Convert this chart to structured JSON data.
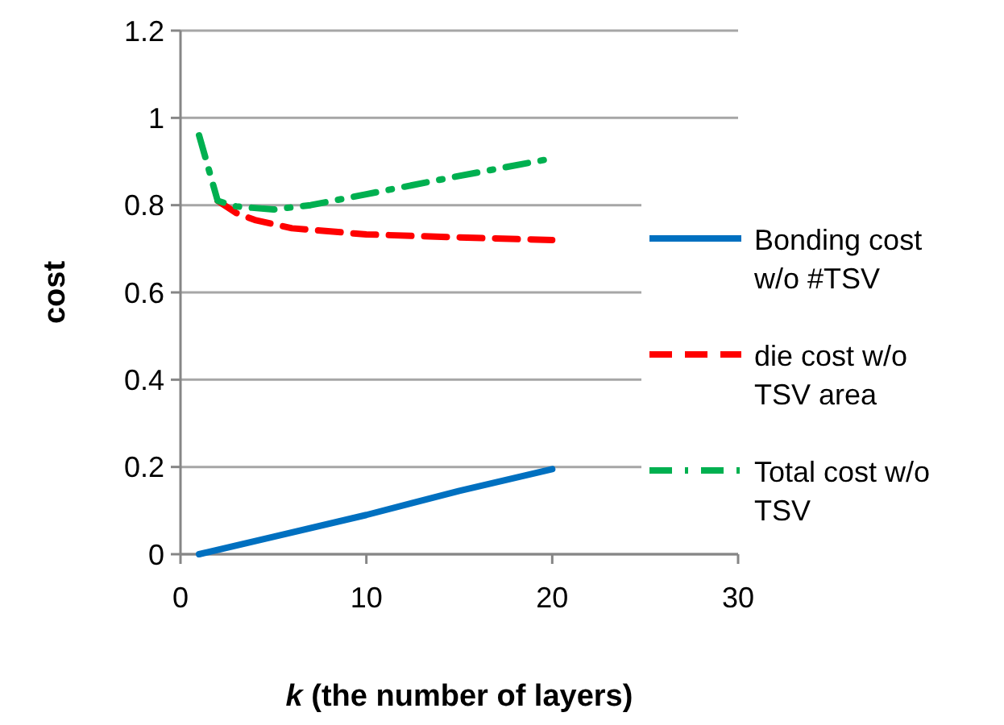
{
  "chart_data": {
    "type": "line",
    "xlabel": "k (the number of layers)",
    "ylabel": "cost",
    "xlim": [
      0,
      30
    ],
    "xticks": [
      0,
      10,
      20,
      30
    ],
    "ylim": [
      0,
      1.2
    ],
    "yticks": [
      0,
      0.2,
      0.4,
      0.6,
      0.8,
      1,
      1.2
    ],
    "grid": "y",
    "legend": "right",
    "series": [
      {
        "name": "Bonding cost w/o #TSV",
        "color": "#0070c0",
        "line_style": "solid",
        "x": [
          1,
          5,
          10,
          15,
          20
        ],
        "values": [
          0,
          0.04,
          0.09,
          0.145,
          0.195
        ]
      },
      {
        "name": "die cost w/o TSV area",
        "color": "#ff0000",
        "line_style": "dashed",
        "x": [
          2,
          3,
          4,
          6,
          10,
          15,
          20
        ],
        "values": [
          0.81,
          0.782,
          0.766,
          0.747,
          0.733,
          0.726,
          0.72
        ]
      },
      {
        "name": "Total cost w/o TSV",
        "color": "#00b050",
        "line_style": "dashdot",
        "x": [
          1,
          2,
          3,
          5,
          7,
          10,
          15,
          20
        ],
        "values": [
          0.96,
          0.81,
          0.797,
          0.79,
          0.8,
          0.825,
          0.867,
          0.907
        ]
      }
    ]
  }
}
